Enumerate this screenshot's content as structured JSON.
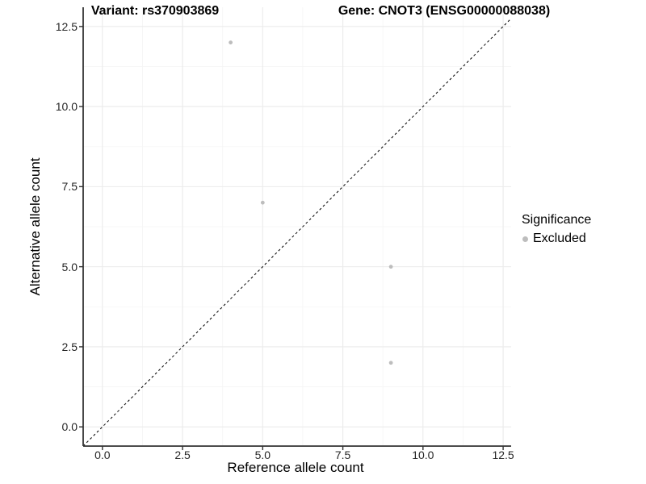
{
  "header": {
    "variant_title": "Variant: rs370903869",
    "gene_title": "Gene: CNOT3 (ENSG00000088038)"
  },
  "chart_data": {
    "type": "scatter",
    "title_left": "Variant: rs370903869",
    "title_right": "Gene: CNOT3 (ENSG00000088038)",
    "xlabel": "Reference allele count",
    "ylabel": "Alternative allele count",
    "xlim": [
      -0.6,
      12.75
    ],
    "ylim": [
      -0.6,
      13.1
    ],
    "xticks": [
      0,
      2.5,
      5,
      7.5,
      10,
      12.5
    ],
    "xtick_labels": [
      "0.0",
      "2.5",
      "5.0",
      "7.5",
      "10.0",
      "12.5"
    ],
    "yticks": [
      0,
      2.5,
      5,
      7.5,
      10,
      12.5
    ],
    "ytick_labels": [
      "0.0",
      "2.5",
      "5.0",
      "7.5",
      "10.0",
      "12.5"
    ],
    "x_minor": [
      1.25,
      3.75,
      6.25,
      8.75,
      11.25
    ],
    "y_minor": [
      1.25,
      3.75,
      6.25,
      8.75,
      11.25
    ],
    "grid": "major+minor",
    "series": [
      {
        "name": "Excluded",
        "color": "#BDBDBD",
        "points": [
          [
            4,
            12
          ],
          [
            5,
            7
          ],
          [
            9,
            5
          ],
          [
            9,
            2
          ]
        ]
      }
    ],
    "identity_line": {
      "style": "dashed",
      "color": "#000000"
    },
    "legend": {
      "title": "Significance",
      "position": "right",
      "items": [
        {
          "label": "Excluded",
          "color": "#BDBDBD"
        }
      ]
    },
    "colors": {
      "background": "#FFFFFF",
      "grid_major": "#EBEBEB",
      "grid_minor": "#F5F5F5",
      "axis": "#333333",
      "tick_text": "#262626",
      "point": "#BDBDBD"
    }
  }
}
